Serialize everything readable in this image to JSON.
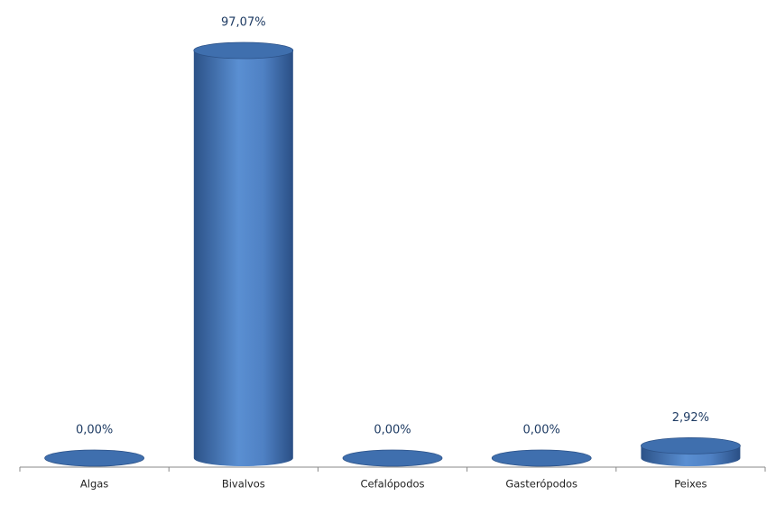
{
  "chart_data": {
    "type": "bar",
    "categories": [
      "Algas",
      "Bivalvos",
      "Cefalópodos",
      "Gasterópodos",
      "Peixes"
    ],
    "values": [
      0,
      97.07,
      0,
      0,
      2.92
    ],
    "value_labels": [
      "0,00%",
      "97,07%",
      "0,00%",
      "0,00%",
      "2,92%"
    ],
    "color": "#4f81bd"
  }
}
